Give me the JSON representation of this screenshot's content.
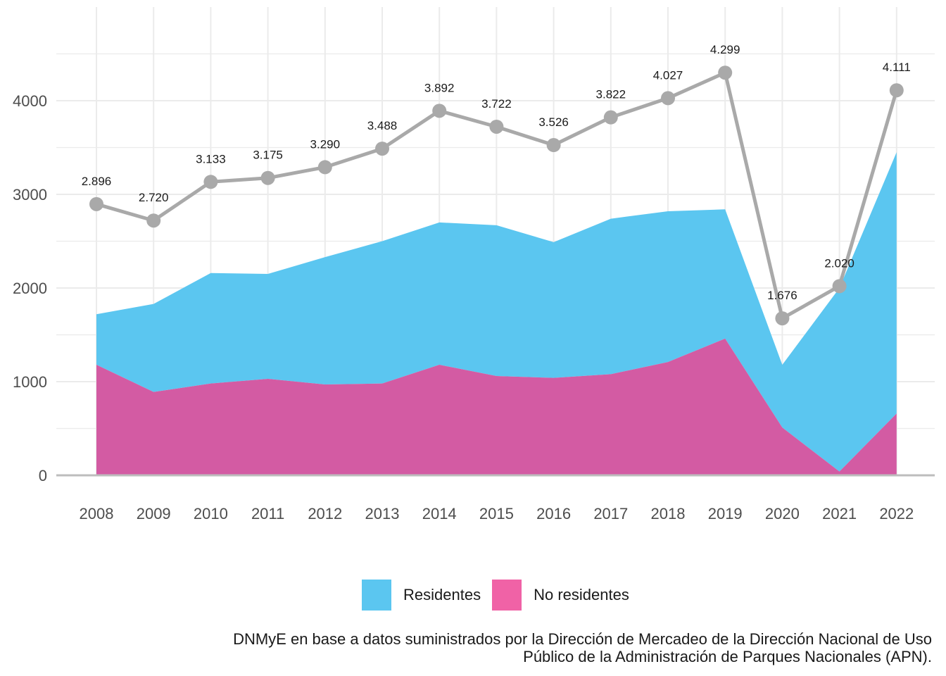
{
  "chart_data": {
    "type": "area",
    "x": [
      2008,
      2009,
      2010,
      2011,
      2012,
      2013,
      2014,
      2015,
      2016,
      2017,
      2018,
      2019,
      2020,
      2021,
      2022
    ],
    "x_tick_labels": [
      "2008",
      "2009",
      "2010",
      "2011",
      "2012",
      "2013",
      "2014",
      "2015",
      "2016",
      "2017",
      "2018",
      "2019",
      "2020",
      "2021",
      "2022"
    ],
    "y_tick_labels": [
      "0",
      "1000",
      "2000",
      "3000",
      "4000"
    ],
    "y_ticks": [
      0,
      1000,
      2000,
      3000,
      4000
    ],
    "ylim": [
      0,
      4600
    ],
    "grid": true,
    "legend_position": "bottom",
    "stacked": true,
    "series": [
      {
        "name": "No residentes",
        "type": "area",
        "color": "#EE3D8F",
        "values": [
          1180,
          890,
          980,
          1030,
          970,
          980,
          1180,
          1060,
          1040,
          1080,
          1210,
          1460,
          510,
          40,
          660
        ]
      },
      {
        "name": "Residentes",
        "type": "area",
        "color": "#50B8E7",
        "values": [
          540,
          940,
          1180,
          1120,
          1360,
          1520,
          1520,
          1610,
          1450,
          1660,
          1610,
          1380,
          670,
          1960,
          2790
        ]
      },
      {
        "type": "line",
        "color": "#A9A9A9",
        "values": [
          2896,
          2720,
          3133,
          3175,
          3290,
          3488,
          3892,
          3722,
          3526,
          3822,
          4027,
          4299,
          1676,
          2020,
          4111
        ],
        "labels": [
          "2.896",
          "2.720",
          "3.133",
          "3.175",
          "3.290",
          "3.488",
          "3.892",
          "3.722",
          "3.526",
          "3.822",
          "4.027",
          "4.299",
          "1.676",
          "2.020",
          "4.111"
        ]
      }
    ]
  },
  "legend": {
    "items": [
      {
        "label": "Residentes",
        "color": "#50B8E7"
      },
      {
        "label": "No residentes",
        "color": "#EE3D8F"
      }
    ]
  },
  "caption": {
    "line1": "DNMyE en base a datos suministrados por la Dirección de Mercadeo de la Dirección Nacional de Uso",
    "line2": "Público de la Administración de Parques Nacionales (APN)."
  }
}
